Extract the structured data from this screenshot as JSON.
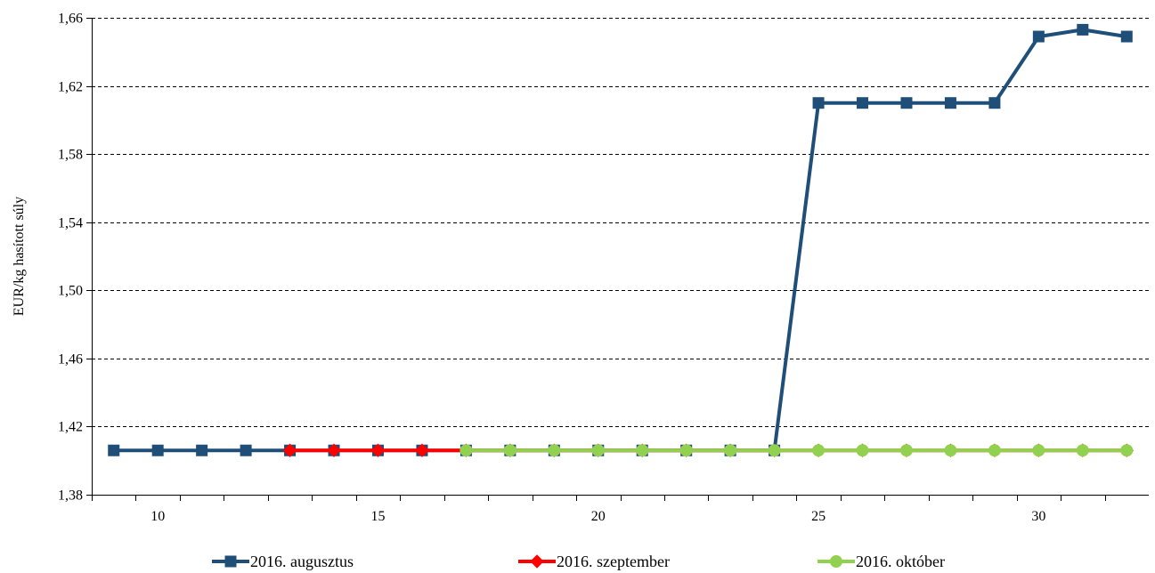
{
  "chart_data": {
    "type": "line",
    "title": "",
    "xlabel": "",
    "ylabel": "EUR/kg hasított súly",
    "xlim": [
      8.5,
      32.5
    ],
    "ylim": [
      1.38,
      1.66
    ],
    "x_ticks": [
      10,
      15,
      20,
      25,
      30
    ],
    "x_tick_labels": [
      "10",
      "15",
      "20",
      "25",
      "30"
    ],
    "y_ticks": [
      1.38,
      1.42,
      1.46,
      1.5,
      1.54,
      1.58,
      1.62,
      1.66
    ],
    "y_tick_labels": [
      "1,38",
      "1,42",
      "1,46",
      "1,50",
      "1,54",
      "1,58",
      "1,62",
      "1,66"
    ],
    "grid": "horizontal-dashed",
    "legend_position": "bottom",
    "series": [
      {
        "name": "2016. augusztus",
        "color": "#1f4e79",
        "marker": "square",
        "x": [
          9,
          10,
          11,
          12,
          13,
          14,
          15,
          16,
          17,
          18,
          19,
          20,
          21,
          22,
          23,
          24,
          25,
          26,
          27,
          28,
          29,
          30,
          31,
          32
        ],
        "values": [
          1.406,
          1.406,
          1.406,
          1.406,
          1.406,
          1.406,
          1.406,
          1.406,
          1.406,
          1.406,
          1.406,
          1.406,
          1.406,
          1.406,
          1.406,
          1.406,
          1.61,
          1.61,
          1.61,
          1.61,
          1.61,
          1.649,
          1.653,
          1.649
        ]
      },
      {
        "name": "2016. szeptember",
        "color": "#ff0000",
        "marker": "diamond",
        "x": [
          13,
          14,
          15,
          16,
          17,
          18,
          19,
          20,
          21,
          22,
          23,
          24,
          25,
          26,
          27,
          28,
          29,
          30,
          31,
          32
        ],
        "values": [
          1.406,
          1.406,
          1.406,
          1.406,
          1.406,
          1.406,
          1.406,
          1.406,
          1.406,
          1.406,
          1.406,
          1.406,
          1.406,
          1.406,
          1.406,
          1.406,
          1.406,
          1.406,
          1.406,
          1.406
        ]
      },
      {
        "name": "2016. október",
        "color": "#92d050",
        "marker": "circle",
        "x": [
          17,
          18,
          19,
          20,
          21,
          22,
          23,
          24,
          25,
          26,
          27,
          28,
          29,
          30,
          31,
          32
        ],
        "values": [
          1.406,
          1.406,
          1.406,
          1.406,
          1.406,
          1.406,
          1.406,
          1.406,
          1.406,
          1.406,
          1.406,
          1.406,
          1.406,
          1.406,
          1.406,
          1.406
        ]
      }
    ]
  }
}
